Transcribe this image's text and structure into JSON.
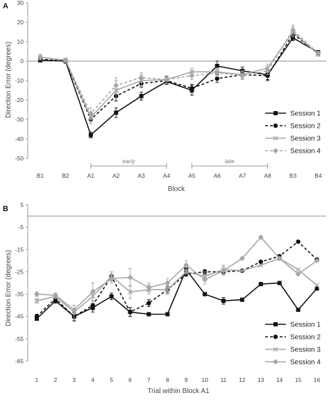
{
  "colors": {
    "session1": "#111111",
    "session2": "#111111",
    "session3": "#a6a6a6",
    "session4": "#a6a6a6",
    "axis": "#9a9a9a",
    "zero": "#8c8c8c"
  },
  "chart_data": [
    {
      "type": "line",
      "panel": "A",
      "ylabel": "Direction Error (degrees)",
      "xlabel": "Block",
      "ylim": [
        -50,
        30
      ],
      "yticks": [
        30,
        20,
        10,
        0,
        -10,
        -20,
        -30,
        -40,
        -50
      ],
      "categories": [
        "B1",
        "B2",
        "A1",
        "A2",
        "A3",
        "A4",
        "A5",
        "A6",
        "A7",
        "A8",
        "B3",
        "B4"
      ],
      "brackets": [
        {
          "label": "early",
          "from": "A1",
          "to": "A4"
        },
        {
          "label": "late",
          "from": "A5",
          "to": "A8"
        }
      ],
      "series": [
        {
          "name": "Session 1",
          "marker": "square",
          "dash": "solid",
          "values": [
            0.5,
            0,
            -38,
            -26.5,
            -18,
            -10.5,
            -15,
            -2.5,
            -5,
            -7,
            12,
            4.5
          ],
          "errors": [
            1,
            1,
            1.5,
            2.5,
            2,
            1.5,
            2.5,
            2.5,
            2,
            3,
            1.5,
            1
          ]
        },
        {
          "name": "Session 2",
          "marker": "circle",
          "dash": "dashed",
          "values": [
            1,
            0,
            -30,
            -18,
            -11.5,
            -10,
            -14,
            -9,
            -7,
            -7.5,
            14,
            4
          ],
          "errors": [
            1,
            1,
            2,
            2.5,
            2,
            2,
            2,
            2,
            2,
            2,
            2,
            1
          ]
        },
        {
          "name": "Session 3",
          "marker": "x",
          "dash": "solid",
          "values": [
            2,
            0.5,
            -29,
            -15,
            -10,
            -9.5,
            -5.5,
            -5.5,
            -7,
            -3.5,
            15,
            3.5
          ],
          "errors": [
            1.5,
            1,
            3,
            5,
            3,
            2,
            2,
            2,
            2,
            2,
            2.5,
            1
          ]
        },
        {
          "name": "Session 4",
          "marker": "diamond",
          "dash": "dashed",
          "values": [
            2,
            0.5,
            -27,
            -12.5,
            -8.5,
            -9.5,
            -7.5,
            -6,
            -7.5,
            -5,
            16,
            4
          ],
          "errors": [
            1.5,
            1,
            3,
            4,
            2.5,
            2,
            2,
            2,
            2,
            2,
            2.5,
            1
          ]
        }
      ]
    },
    {
      "type": "line",
      "panel": "B",
      "ylabel": "Direction Error (degrees)",
      "xlabel": "Trial within Block A1",
      "ylim": [
        -65,
        5
      ],
      "yticks": [
        5,
        -5,
        -15,
        -25,
        -35,
        -45,
        -55,
        -65
      ],
      "categories": [
        "1",
        "2",
        "3",
        "4",
        "5",
        "6",
        "7",
        "8",
        "9",
        "10",
        "11",
        "12",
        "13",
        "14",
        "15",
        "16"
      ],
      "series": [
        {
          "name": "Session 1",
          "marker": "square",
          "dash": "solid",
          "values": [
            -46,
            -38,
            -45,
            -41,
            -36,
            -43,
            -44,
            -44,
            -24,
            -35,
            -38,
            -37.5,
            -30.5,
            -30,
            -42,
            -32.5
          ],
          "errors": [
            0,
            1,
            2,
            2,
            1.5,
            2,
            0,
            0,
            2,
            0,
            1.5,
            0,
            0,
            0,
            0,
            0
          ]
        },
        {
          "name": "Session 2",
          "marker": "circle",
          "dash": "dashed",
          "values": [
            -45,
            -37,
            -45,
            -40,
            -27,
            -43,
            -39,
            -33,
            -26,
            -25,
            -25,
            -24.5,
            -20.5,
            -18,
            -11.5,
            -19.5
          ],
          "errors": [
            1,
            1,
            2,
            2,
            2,
            2,
            1.5,
            1.5,
            1,
            1,
            1,
            0,
            0,
            0,
            0,
            0
          ]
        },
        {
          "name": "Session 3",
          "marker": "x",
          "dash": "solid",
          "values": [
            -38,
            -36,
            -43,
            -36,
            -27,
            -34,
            -33,
            -33,
            -25,
            -27,
            -24,
            -24.5,
            -22,
            -19,
            -24,
            -31
          ],
          "errors": [
            1,
            1,
            3,
            3,
            2,
            3,
            2,
            2,
            1,
            2,
            2,
            0,
            0,
            0,
            0,
            0
          ]
        },
        {
          "name": "Session 4",
          "marker": "diamond",
          "dash": "solid",
          "values": [
            -35,
            -35.5,
            -42,
            -34,
            -28,
            -27.5,
            -32,
            -30,
            -22,
            -28.5,
            -24.5,
            -19,
            -9.5,
            -19,
            -26,
            -20
          ],
          "errors": [
            1,
            1,
            2,
            4,
            2,
            4,
            2,
            2,
            2,
            2,
            2,
            0,
            0,
            0,
            0,
            0
          ]
        }
      ]
    }
  ]
}
